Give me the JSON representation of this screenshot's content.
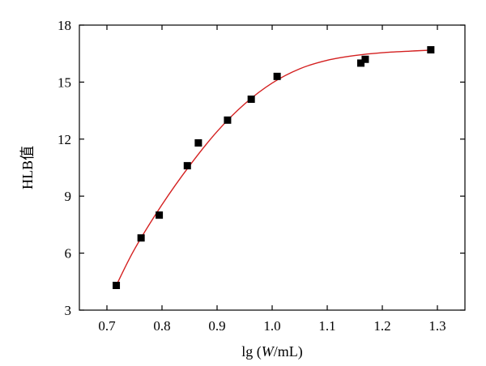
{
  "chart_data": {
    "type": "scatter",
    "xlabel_prefix": "lg (",
    "xlabel_var": "W",
    "xlabel_suffix": "/mL)",
    "ylabel": "HLB值",
    "xlim": [
      0.65,
      1.35
    ],
    "ylim": [
      3,
      18
    ],
    "xticks": [
      0.7,
      0.8,
      0.9,
      1.0,
      1.1,
      1.2,
      1.3
    ],
    "xtick_labels": [
      "0.7",
      "0.8",
      "0.9",
      "1.0",
      "1.1",
      "1.2",
      "1.3"
    ],
    "yticks": [
      3,
      6,
      9,
      12,
      15,
      18
    ],
    "ytick_labels": [
      "3",
      "6",
      "9",
      "12",
      "15",
      "18"
    ],
    "grid": false,
    "series": [
      {
        "type": "scatter",
        "color": "#000000",
        "marker": "square",
        "x": [
          0.717,
          0.762,
          0.795,
          0.846,
          0.866,
          0.919,
          0.962,
          1.009,
          1.161,
          1.169,
          1.288
        ],
        "y": [
          4.3,
          6.8,
          8.0,
          10.6,
          11.8,
          13.0,
          14.1,
          15.3,
          16.0,
          16.2,
          16.7
        ]
      },
      {
        "type": "line",
        "color": "#d42020",
        "x": [
          0.717,
          0.75,
          0.8,
          0.85,
          0.9,
          0.95,
          1.0,
          1.05,
          1.1,
          1.15,
          1.2,
          1.25,
          1.288
        ],
        "y": [
          4.3,
          6.2,
          8.55,
          10.6,
          12.4,
          13.85,
          14.95,
          15.7,
          16.15,
          16.4,
          16.55,
          16.63,
          16.68
        ]
      }
    ]
  }
}
